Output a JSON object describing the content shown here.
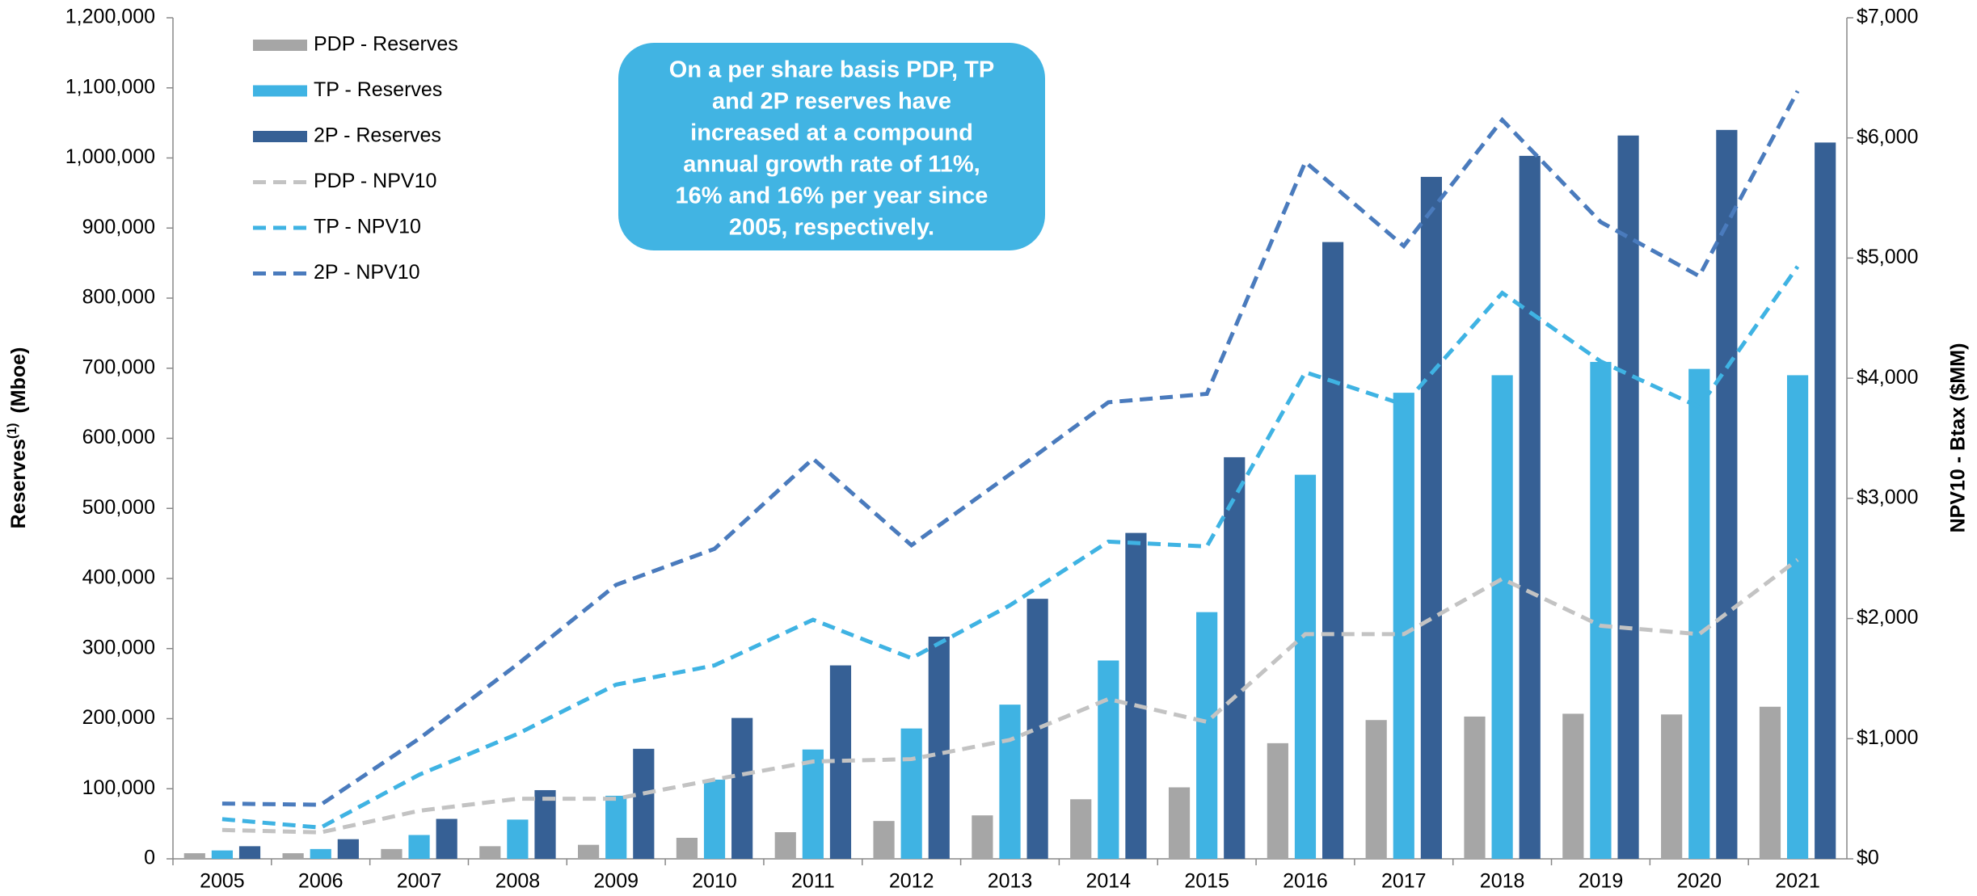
{
  "chart_data": {
    "type": "bar",
    "y_label": {
      "text": "Reserves",
      "superscript": "(1)",
      "unit": "(Mboe)"
    },
    "y2_label": "NPV10 - Btax ($MM)",
    "annotation": [
      "On a per share basis PDP, TP",
      "and 2P reserves have",
      "increased at a compound",
      "annual growth rate of 11%,",
      "16% and 16% per year since",
      "2005, respectively."
    ],
    "categories": [
      "2005",
      "2006",
      "2007",
      "2008",
      "2009",
      "2010",
      "2011",
      "2012",
      "2013",
      "2014",
      "2015",
      "2016",
      "2017",
      "2018",
      "2019",
      "2020",
      "2021"
    ],
    "ylim": [
      0,
      1200000
    ],
    "yticks": [
      {
        "value": 0,
        "label": "0"
      },
      {
        "value": 100000,
        "label": "100,000"
      },
      {
        "value": 200000,
        "label": "200,000"
      },
      {
        "value": 300000,
        "label": "300,000"
      },
      {
        "value": 400000,
        "label": "400,000"
      },
      {
        "value": 500000,
        "label": "500,000"
      },
      {
        "value": 600000,
        "label": "600,000"
      },
      {
        "value": 700000,
        "label": "700,000"
      },
      {
        "value": 800000,
        "label": "800,000"
      },
      {
        "value": 900000,
        "label": "900,000"
      },
      {
        "value": 1000000,
        "label": "1,000,000"
      },
      {
        "value": 1100000,
        "label": "1,100,000"
      },
      {
        "value": 1200000,
        "label": "1,200,000"
      }
    ],
    "y2lim": [
      0,
      7000
    ],
    "y2ticks": [
      {
        "value": 0,
        "label": "$0"
      },
      {
        "value": 1000,
        "label": "$1,000"
      },
      {
        "value": 2000,
        "label": "$2,000"
      },
      {
        "value": 3000,
        "label": "$3,000"
      },
      {
        "value": 4000,
        "label": "$4,000"
      },
      {
        "value": 5000,
        "label": "$5,000"
      },
      {
        "value": 6000,
        "label": "$6,000"
      },
      {
        "value": 7000,
        "label": "$7,000"
      }
    ],
    "legend": "top-left",
    "series": [
      {
        "name": "PDP - Reserves",
        "type": "bar",
        "color": "#a6a6a6",
        "values": [
          8000,
          8000,
          14000,
          18000,
          20000,
          30000,
          38000,
          54000,
          62000,
          85000,
          102000,
          165000,
          198000,
          203000,
          207000,
          206000,
          217000
        ]
      },
      {
        "name": "TP - Reserves",
        "type": "bar",
        "color": "#3fb3e3",
        "values": [
          12000,
          14000,
          34000,
          56000,
          90000,
          113000,
          156000,
          186000,
          220000,
          283000,
          352000,
          548000,
          665000,
          690000,
          709000,
          699000,
          690000
        ]
      },
      {
        "name": "2P - Reserves",
        "type": "bar",
        "color": "#366095",
        "values": [
          18000,
          28000,
          57000,
          98000,
          157000,
          201000,
          276000,
          317000,
          371000,
          465000,
          573000,
          880000,
          973000,
          1003000,
          1032000,
          1040000,
          1022000
        ]
      },
      {
        "name": "PDP - NPV10",
        "type": "line",
        "dashed": true,
        "axis": "y2",
        "color": "#c3c3c3",
        "values": [
          240,
          220,
          400,
          500,
          500,
          660,
          810,
          830,
          990,
          1330,
          1140,
          1870,
          1870,
          2330,
          1940,
          1870,
          2490
        ]
      },
      {
        "name": "TP - NPV10",
        "type": "line",
        "dashed": true,
        "axis": "y2",
        "color": "#3fb3e3",
        "values": [
          330,
          260,
          700,
          1040,
          1450,
          1610,
          1990,
          1670,
          2110,
          2640,
          2600,
          4050,
          3780,
          4710,
          4140,
          3760,
          4930
        ]
      },
      {
        "name": "2P - NPV10",
        "type": "line",
        "dashed": true,
        "axis": "y2",
        "color": "#4a7bbd",
        "values": [
          460,
          450,
          1000,
          1620,
          2280,
          2580,
          3330,
          2610,
          3200,
          3800,
          3870,
          5800,
          5100,
          6150,
          5300,
          4850,
          6390
        ]
      }
    ]
  }
}
